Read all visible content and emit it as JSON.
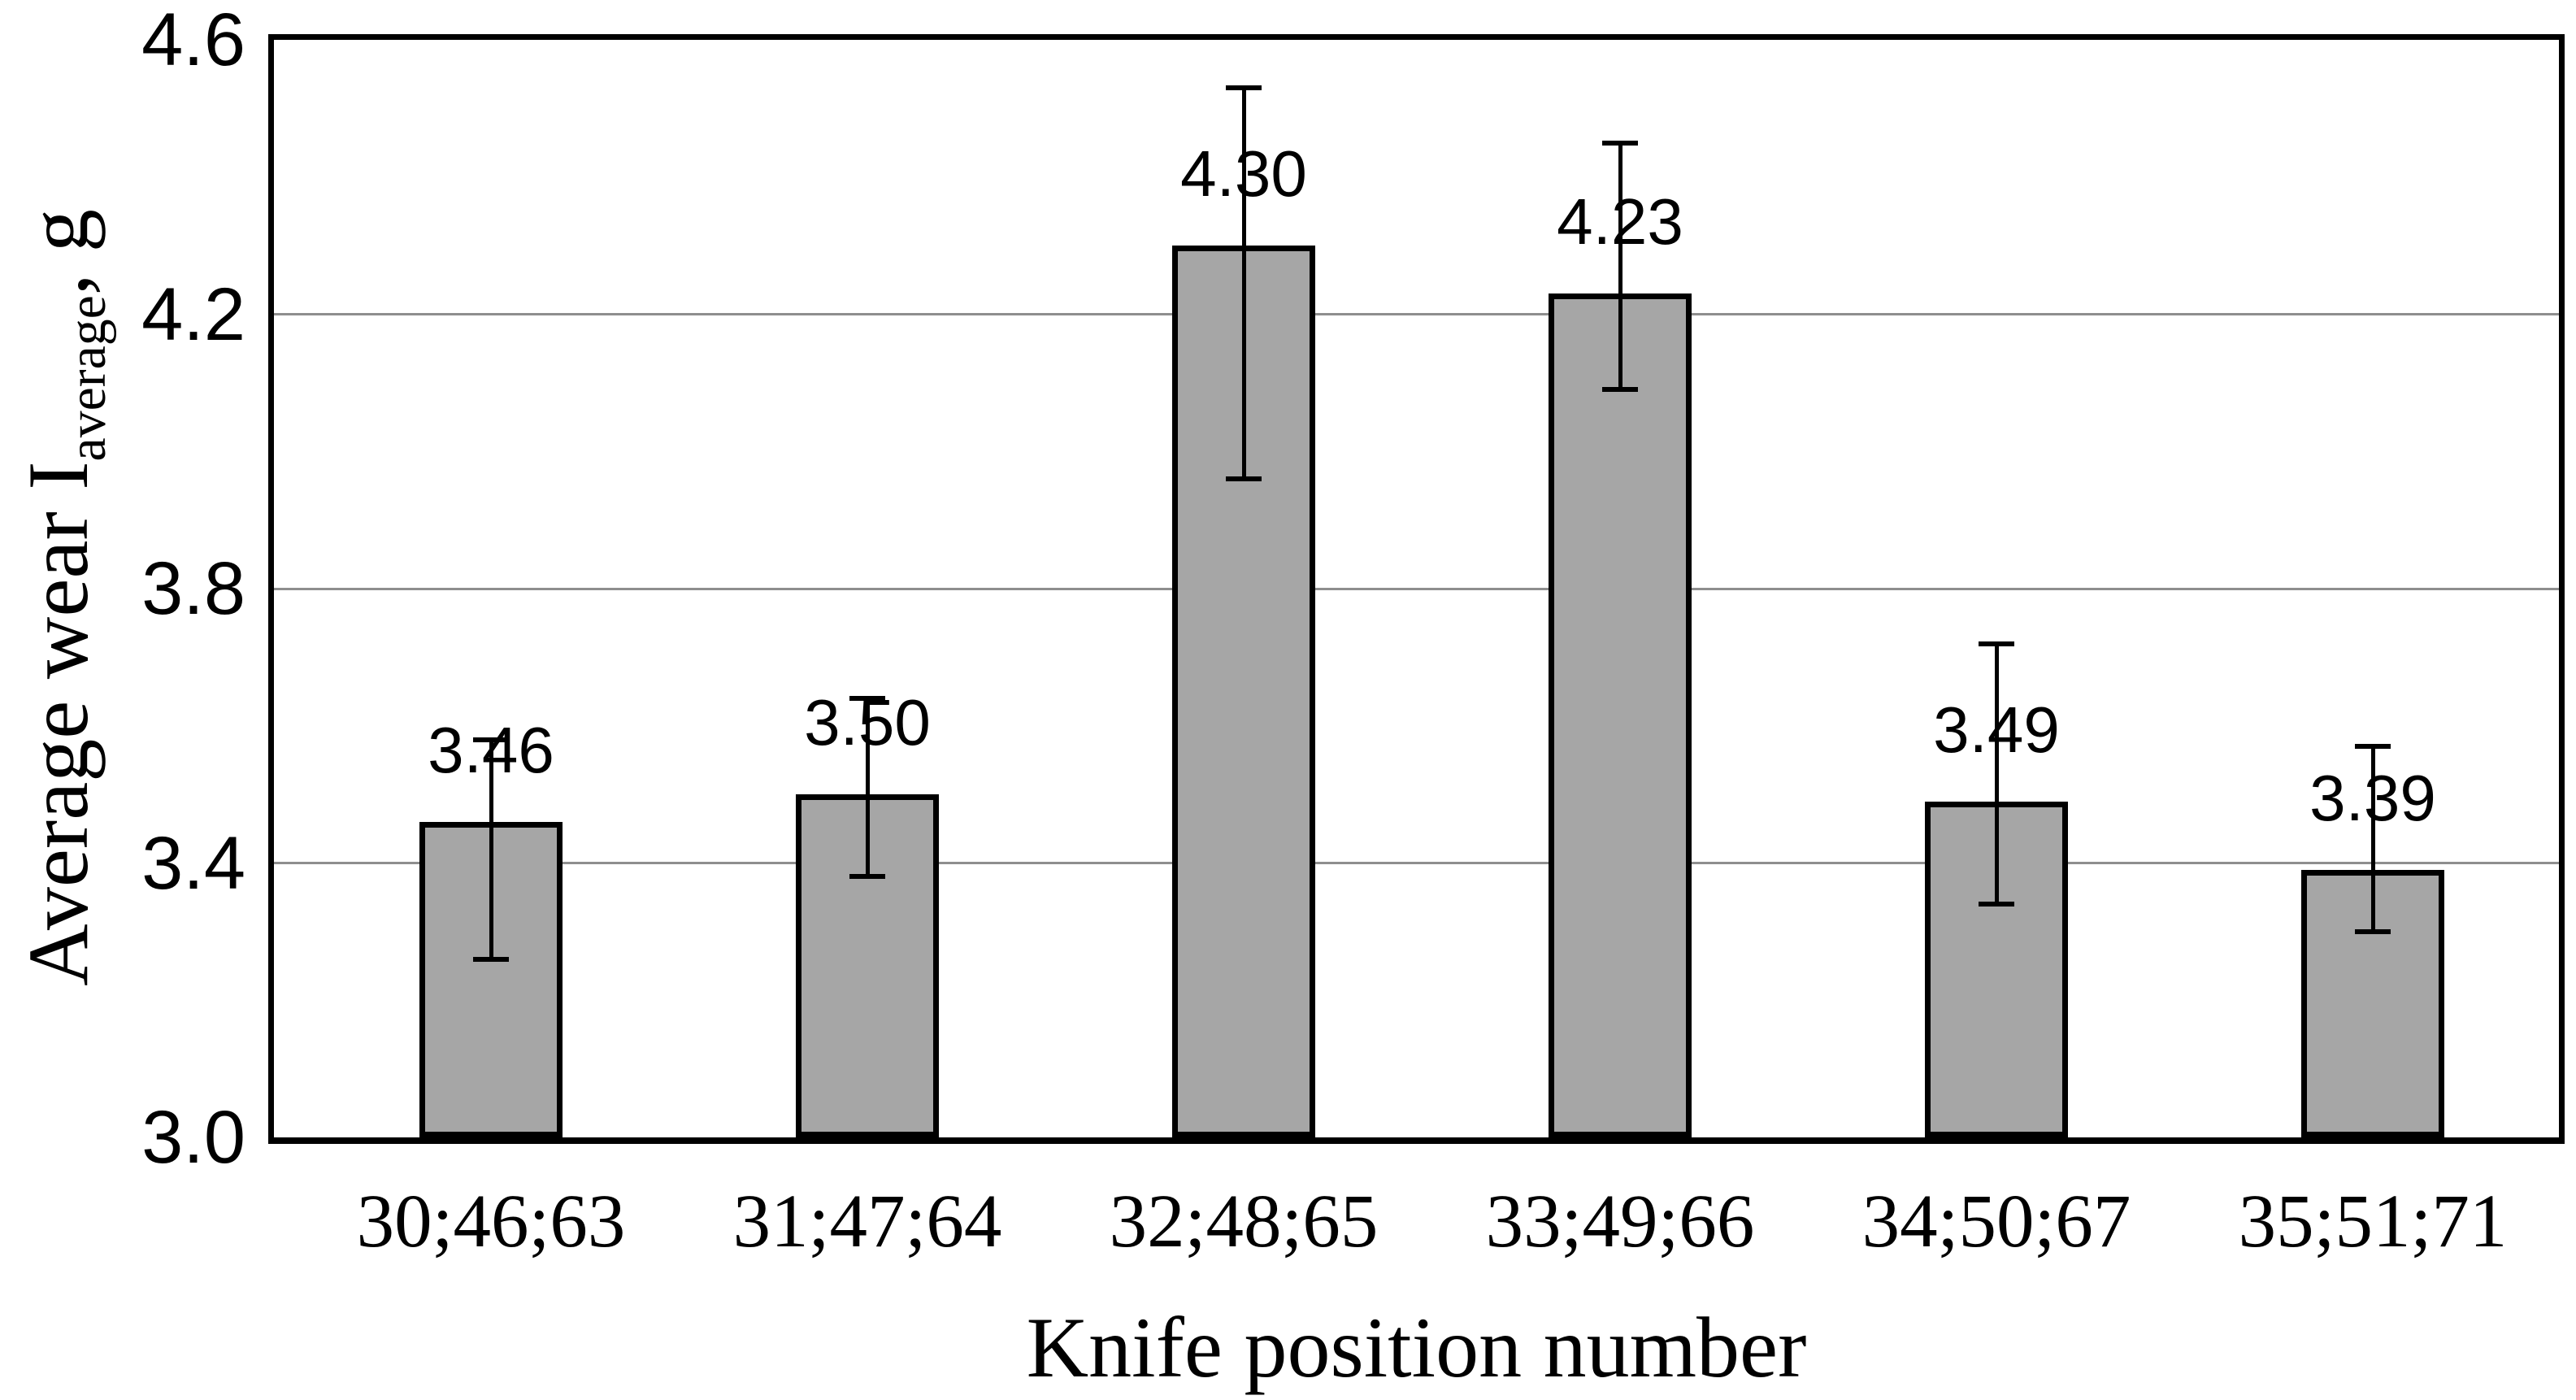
{
  "chart_data": {
    "type": "bar",
    "title": "",
    "categories": [
      "30;46;63",
      "31;47;64",
      "32;48;65",
      "33;49;66",
      "34;50;67",
      "35;51;71"
    ],
    "values": [
      3.46,
      3.5,
      4.3,
      4.23,
      3.49,
      3.39
    ],
    "value_labels": [
      "3.46",
      "3.50",
      "4.30",
      "4.23",
      "3.49",
      "3.39"
    ],
    "error_low": [
      3.26,
      3.38,
      3.96,
      4.09,
      3.34,
      3.3
    ],
    "error_high": [
      3.58,
      3.64,
      4.53,
      4.45,
      3.72,
      3.57
    ],
    "xlabel": "Knife position number",
    "ylabel": {
      "main": "Average wear I",
      "sub": "average",
      "suffix": ", g"
    },
    "ylim": [
      3.0,
      4.6
    ],
    "ytick_labels": [
      "4.6",
      "4.2",
      "3.8",
      "3.4",
      "3.0"
    ],
    "grid": "horizontal-only",
    "legend": "none",
    "colors": {
      "bar_fill": "#a6a6a6",
      "bar_border": "#000000",
      "gridline": "#8e8e8e",
      "error_bar": "#000000",
      "text": "#000000",
      "background": "#ffffff"
    }
  }
}
